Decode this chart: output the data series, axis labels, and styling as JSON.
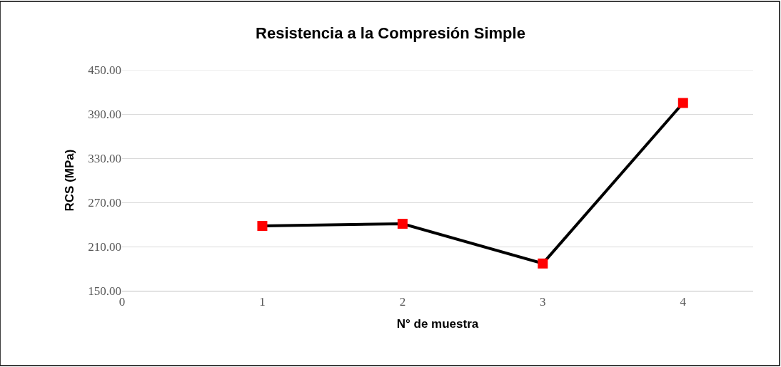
{
  "chart_data": {
    "type": "line",
    "title": "Resistencia a la Compresión Simple",
    "xlabel": "N° de muestra",
    "ylabel": "RCS (MPa)",
    "x": [
      1,
      2,
      3,
      4
    ],
    "series": [
      {
        "color": "#000000",
        "colors": [
          "#ff0000",
          "#ff0000",
          "#ff0000",
          "#ff0000"
        ],
        "values": [
          238,
          241,
          187,
          405
        ]
      }
    ],
    "xlim": [
      0,
      4.5
    ],
    "xticks": [
      0,
      1,
      2,
      3,
      4
    ],
    "ylim": [
      150,
      450
    ],
    "yticks": [
      {
        "value": 150,
        "label": "150.00"
      },
      {
        "value": 210,
        "label": "210.00"
      },
      {
        "value": 270,
        "label": "270.00"
      },
      {
        "value": 330,
        "label": "330.00"
      },
      {
        "value": 390,
        "label": "390.00"
      },
      {
        "value": 450,
        "label": "450.00"
      }
    ],
    "grid": "y",
    "marker": "square",
    "line_style": "solid",
    "legend": false
  }
}
